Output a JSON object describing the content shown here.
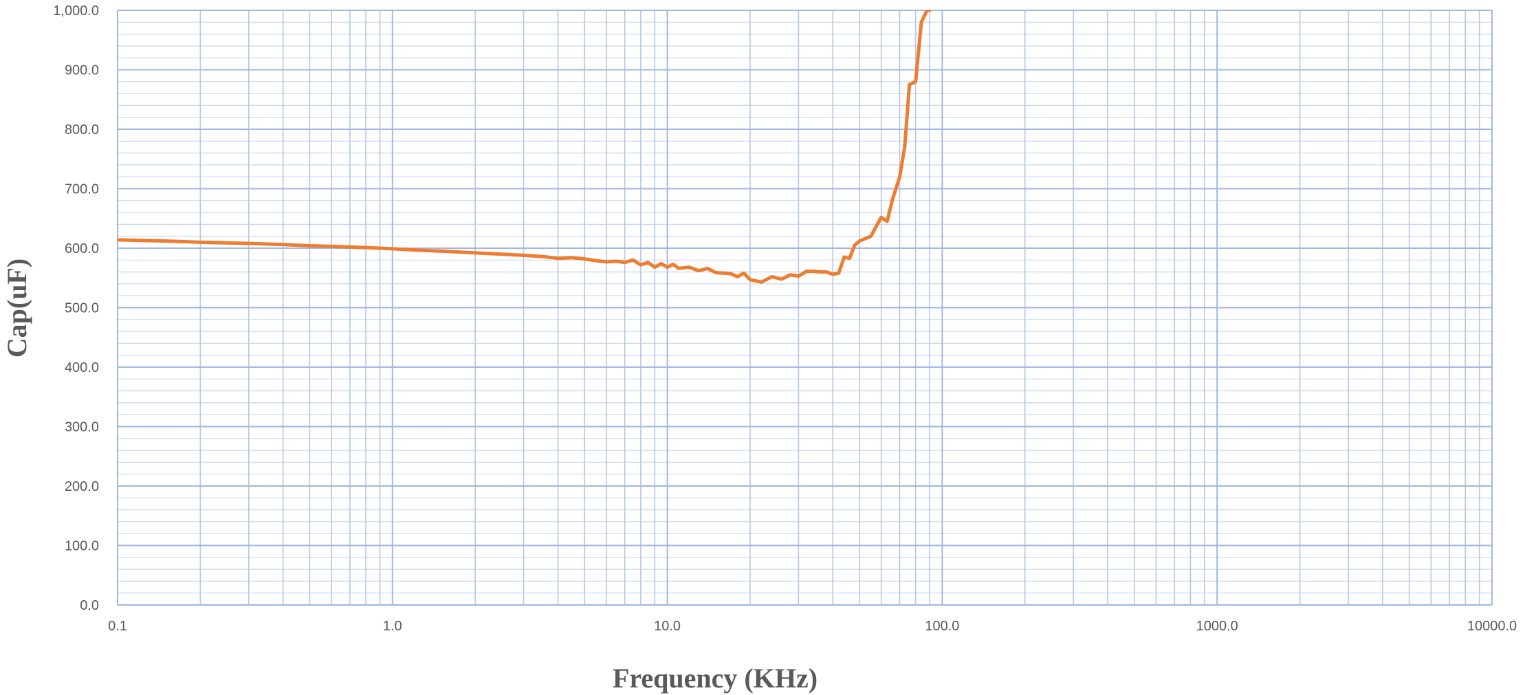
{
  "chart_data": {
    "type": "line",
    "xlabel": "Frequency (KHz)",
    "ylabel": "Cap(uF)",
    "x_scale": "log",
    "xlim": [
      0.1,
      10000
    ],
    "ylim": [
      0,
      1000
    ],
    "x_ticks": [
      "0.1",
      "1.0",
      "10.0",
      "100.0",
      "1000.0",
      "10000.0"
    ],
    "y_ticks": [
      "0.0",
      "100.0",
      "200.0",
      "300.0",
      "400.0",
      "500.0",
      "600.0",
      "700.0",
      "800.0",
      "900.0",
      "1,000.0"
    ],
    "grid": "major and minor, both axes",
    "legend": "none",
    "series": [
      {
        "color": "#ED7D31",
        "x": [
          0.1,
          0.15,
          0.2,
          0.3,
          0.4,
          0.5,
          0.6,
          0.8,
          1.0,
          1.2,
          1.5,
          2.0,
          2.5,
          3.0,
          3.5,
          4.0,
          4.5,
          5.0,
          5.5,
          6.0,
          6.5,
          7.0,
          7.5,
          8.0,
          8.5,
          9.0,
          9.5,
          10.0,
          10.5,
          11.0,
          12.0,
          13.0,
          14.0,
          15.0,
          16.0,
          17.0,
          18.0,
          19.0,
          20.0,
          22.0,
          24.0,
          26.0,
          28.0,
          30.0,
          32.0,
          34.0,
          36.0,
          38.0,
          40.0,
          42.0,
          44.0,
          46.0,
          48.0,
          50.0,
          55.0,
          60.0,
          63.0,
          66.0,
          70.0,
          73.0,
          76.0,
          80.0,
          84.0,
          88.0,
          90.0
        ],
        "y": [
          614,
          612,
          610,
          608,
          606,
          604,
          603,
          601,
          599,
          597,
          595,
          592,
          590,
          588,
          586,
          583,
          584,
          582,
          579,
          577,
          578,
          576,
          580,
          572,
          576,
          568,
          574,
          568,
          573,
          566,
          568,
          562,
          566,
          559,
          558,
          557,
          552,
          558,
          547,
          543,
          552,
          548,
          555,
          553,
          561,
          561,
          560,
          560,
          556,
          558,
          585,
          583,
          605,
          612,
          620,
          652,
          645,
          683,
          720,
          770,
          875,
          880,
          980,
          1000,
          1000
        ]
      }
    ]
  }
}
